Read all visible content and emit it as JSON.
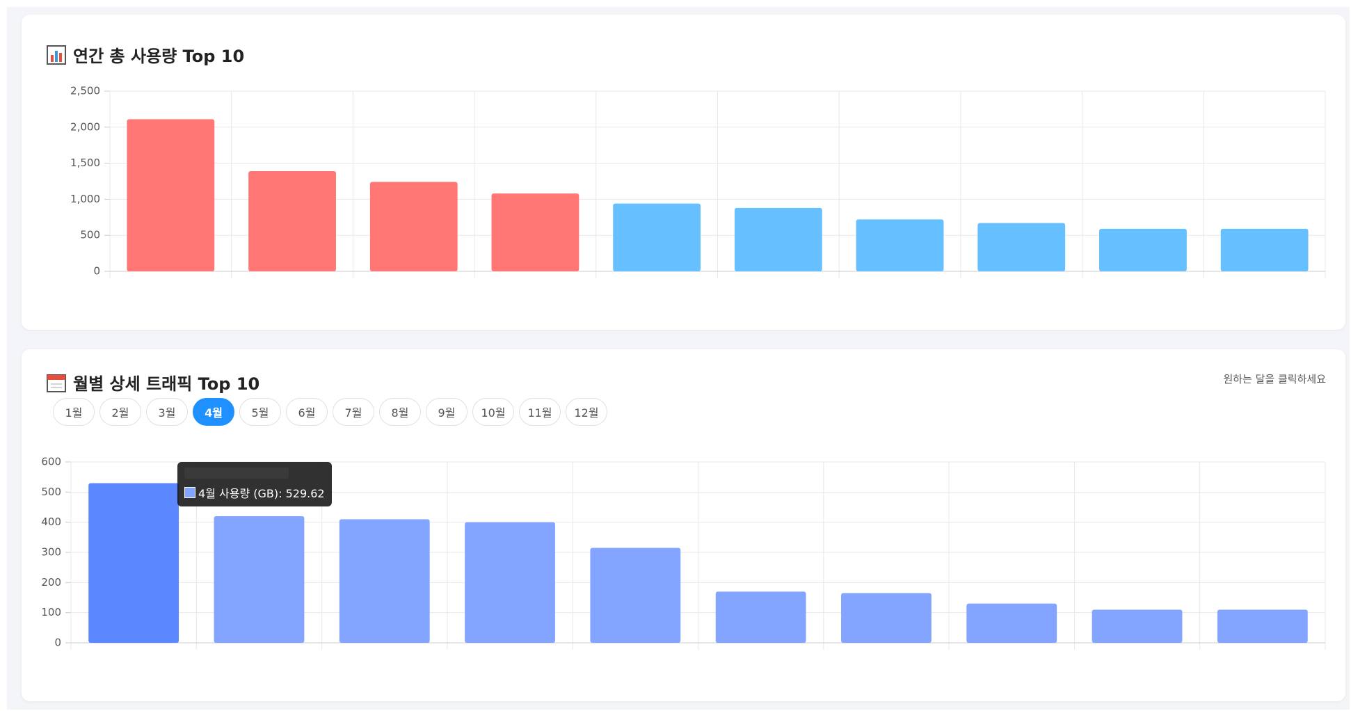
{
  "chart_data": [
    {
      "type": "bar",
      "title": "연간 총 사용량 Top 10",
      "values": [
        2110,
        1390,
        1240,
        1080,
        940,
        880,
        720,
        670,
        590,
        590
      ],
      "colors": [
        "#ff7675",
        "#ff7675",
        "#ff7675",
        "#ff7675",
        "#66bfff",
        "#66bfff",
        "#66bfff",
        "#66bfff",
        "#66bfff",
        "#66bfff"
      ],
      "ylim": [
        0,
        2500
      ],
      "yticks": [
        0,
        500,
        {
          "value": 1000,
          "label": "1,000"
        },
        {
          "value": 1500,
          "label": "1,500"
        },
        {
          "value": 2000,
          "label": "2,000"
        },
        {
          "value": 2500,
          "label": "2,500"
        }
      ],
      "grid": true
    },
    {
      "type": "bar",
      "title": "월별 상세 트래픽 Top 10",
      "values": [
        529.62,
        420,
        410,
        400,
        315,
        170,
        165,
        130,
        110,
        110
      ],
      "colors": [
        "#5b87ff",
        "#84a5ff",
        "#84a5ff",
        "#84a5ff",
        "#84a5ff",
        "#84a5ff",
        "#84a5ff",
        "#84a5ff",
        "#84a5ff",
        "#84a5ff"
      ],
      "ylim": [
        0,
        600
      ],
      "yticks": [
        0,
        100,
        200,
        300,
        400,
        500,
        600
      ],
      "grid": true,
      "tooltip": "4월 사용량 (GB): 529.62"
    }
  ],
  "month_tabs": {
    "labels": [
      "1월",
      "2월",
      "3월",
      "4월",
      "5월",
      "6월",
      "7월",
      "8월",
      "9월",
      "10월",
      "11월",
      "12월"
    ],
    "active": 3
  },
  "hint": "원하는 달을 클릭하세요"
}
